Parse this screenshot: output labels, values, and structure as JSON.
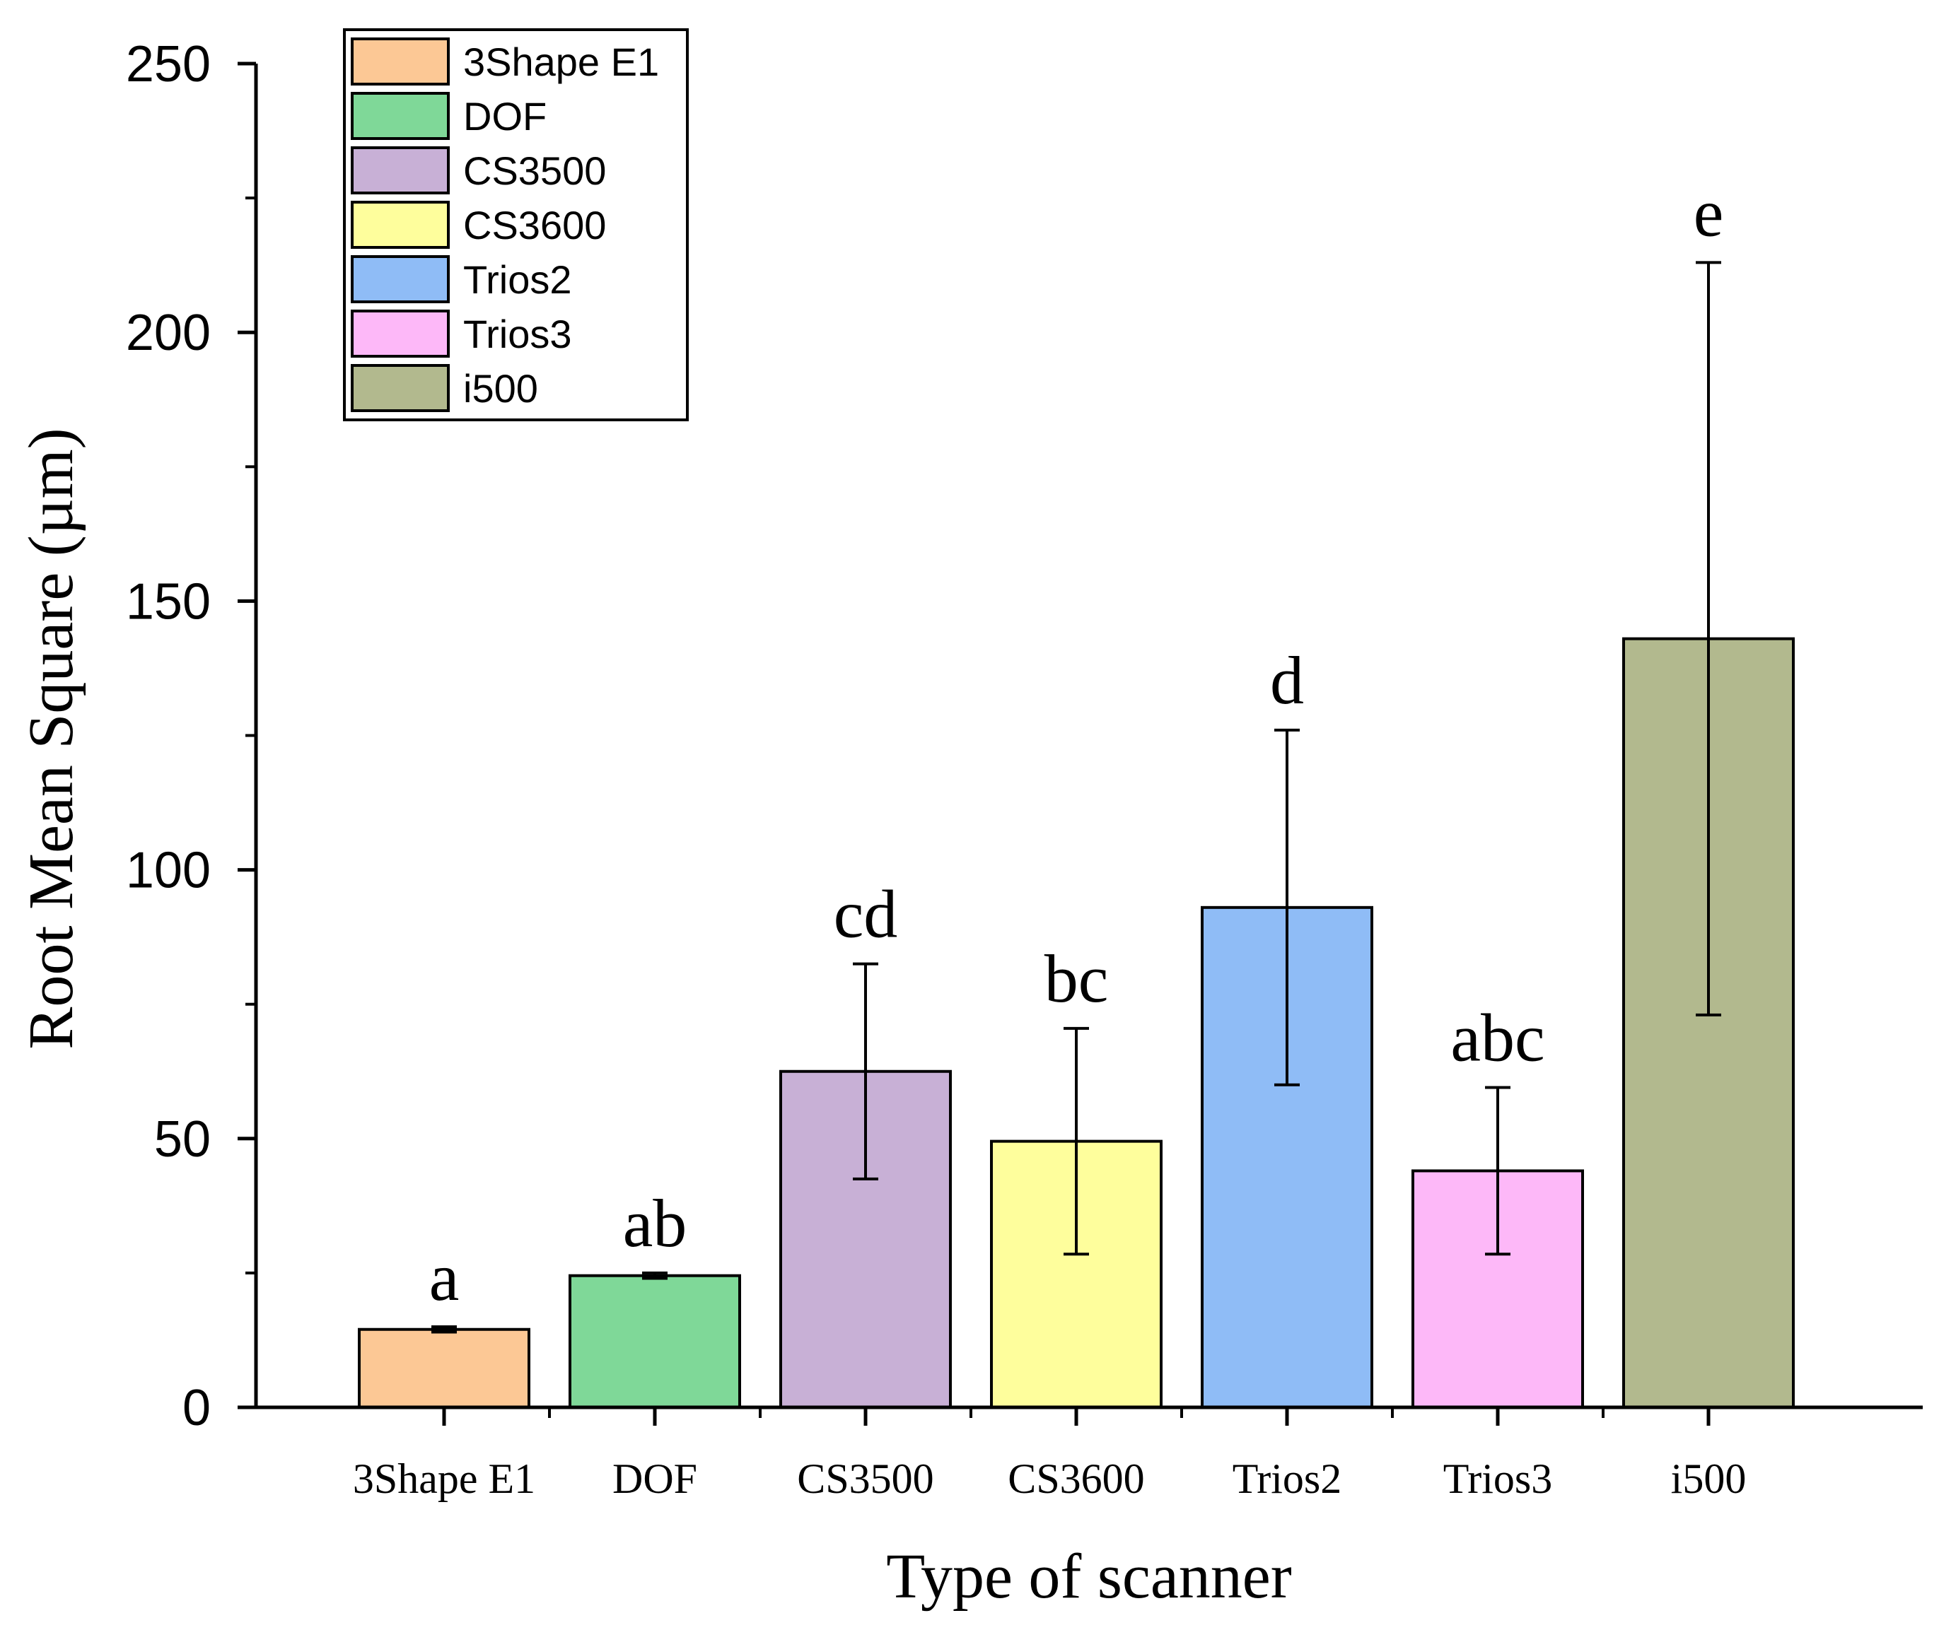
{
  "chart_data": {
    "type": "bar",
    "title": "",
    "xlabel": "Type of scanner",
    "ylabel": "Root Mean Square (µm)",
    "ylim": [
      0,
      250
    ],
    "yticks": [
      0,
      50,
      100,
      150,
      200,
      250
    ],
    "ytick_labels": [
      "0",
      "50",
      "100",
      "150",
      "200",
      "250"
    ],
    "grid": false,
    "legend_position": "top-left",
    "categories": [
      "3Shape E1",
      "DOF",
      "CS3500",
      "CS3600",
      "Trios2",
      "Trios3",
      "i500"
    ],
    "values": [
      14.5,
      24.5,
      62.5,
      49.5,
      93,
      44,
      143
    ],
    "errors": [
      0.5,
      0.5,
      20,
      21,
      33,
      15.5,
      70
    ],
    "significance_letters": [
      "a",
      "ab",
      "cd",
      "bc",
      "d",
      "abc",
      "e"
    ],
    "colors": [
      "#FCC895",
      "#7FD898",
      "#C8B0D6",
      "#FEFE9C",
      "#8FBCF6",
      "#FDB8F8",
      "#B2B98E"
    ],
    "legend": [
      {
        "label": "3Shape E1",
        "color": "#FCC895"
      },
      {
        "label": "DOF",
        "color": "#7FD898"
      },
      {
        "label": "CS3500",
        "color": "#C8B0D6"
      },
      {
        "label": "CS3600",
        "color": "#FEFE9C"
      },
      {
        "label": "Trios2",
        "color": "#8FBCF6"
      },
      {
        "label": "Trios3",
        "color": "#FDB8F8"
      },
      {
        "label": "i500",
        "color": "#B2B98E"
      }
    ]
  }
}
